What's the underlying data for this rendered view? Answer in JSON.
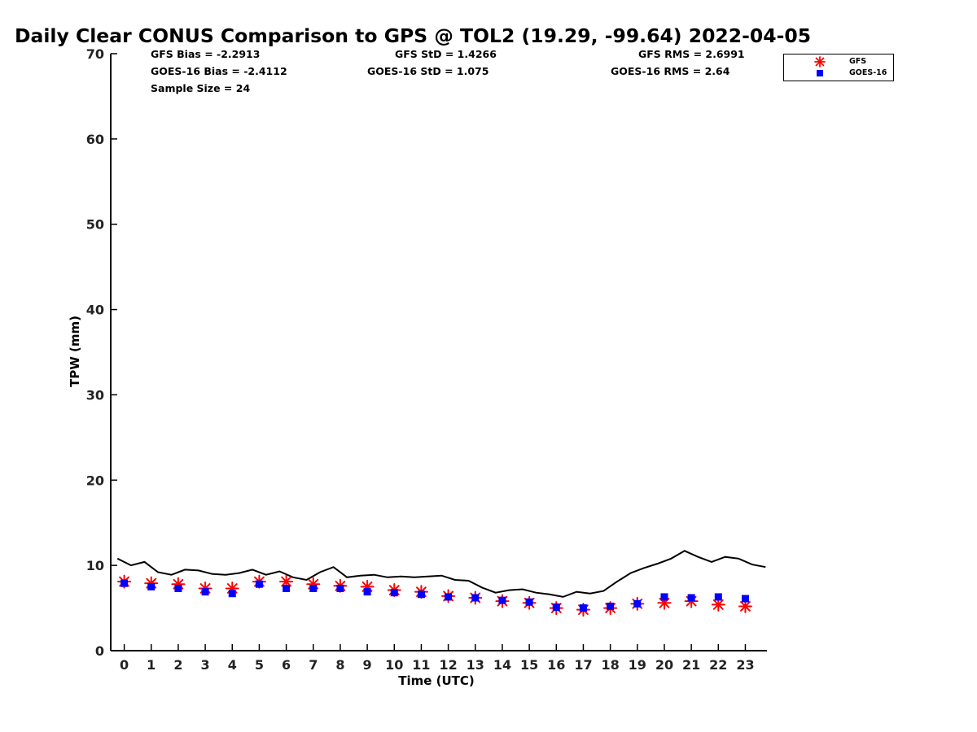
{
  "chart_data": {
    "type": "line",
    "title": "Daily Clear CONUS Comparison to GPS @ TOL2 (19.29, -99.64) 2022-04-05",
    "xlabel": "Time (UTC)",
    "ylabel": "TPW (mm)",
    "xlim": [
      -0.5,
      23.8
    ],
    "ylim": [
      0,
      70
    ],
    "x_ticks": [
      "0",
      "1",
      "2",
      "3",
      "4",
      "5",
      "6",
      "7",
      "8",
      "9",
      "10",
      "11",
      "12",
      "13",
      "14",
      "15",
      "16",
      "17",
      "18",
      "19",
      "20",
      "21",
      "22",
      "23"
    ],
    "y_ticks": [
      "0",
      "10",
      "20",
      "30",
      "40",
      "50",
      "60",
      "70"
    ],
    "grid": false,
    "legend_position": "top-right",
    "stats": {
      "gfs_bias": "GFS Bias = -2.2913",
      "gfs_std": "GFS StD = 1.4266",
      "gfs_rms": "GFS RMS = 2.6991",
      "goes_bias": "GOES-16 Bias = -2.4112",
      "goes_std": "GOES-16 StD = 1.075",
      "goes_rms": "GOES-16 RMS = 2.64",
      "sample_size": "Sample Size = 24"
    },
    "series": [
      {
        "name": "",
        "kind": "line",
        "color": "#000000",
        "x": [
          -0.25,
          0.25,
          0.75,
          1.25,
          1.75,
          2.25,
          2.75,
          3.25,
          3.75,
          4.25,
          4.75,
          5.25,
          5.75,
          6.25,
          6.75,
          7.25,
          7.75,
          8.25,
          8.75,
          9.25,
          9.75,
          10.25,
          10.75,
          11.25,
          11.75,
          12.25,
          12.75,
          13.25,
          13.75,
          14.25,
          14.75,
          15.25,
          15.75,
          16.25,
          16.75,
          17.25,
          17.75,
          18.25,
          18.75,
          19.25,
          19.75,
          20.25,
          20.75,
          21.25,
          21.75,
          22.25,
          22.75,
          23.25,
          23.75
        ],
        "y": [
          10.8,
          10.0,
          10.4,
          9.2,
          8.9,
          9.5,
          9.4,
          9.0,
          8.9,
          9.1,
          9.5,
          8.9,
          9.3,
          8.6,
          8.3,
          9.2,
          9.8,
          8.6,
          8.8,
          8.9,
          8.6,
          8.7,
          8.6,
          8.7,
          8.8,
          8.3,
          8.2,
          7.4,
          6.8,
          7.1,
          7.2,
          6.8,
          6.6,
          6.3,
          6.9,
          6.7,
          7.0,
          8.1,
          9.1,
          9.7,
          10.2,
          10.8,
          11.7,
          11.0,
          10.4,
          11.0,
          10.8,
          10.1,
          9.8
        ]
      },
      {
        "name": "GFS",
        "kind": "asterisk",
        "color": "#ff0000",
        "x": [
          0,
          1,
          2,
          3,
          4,
          5,
          6,
          7,
          8,
          9,
          10,
          11,
          12,
          13,
          14,
          15,
          16,
          17,
          18,
          19,
          20,
          21,
          22,
          23
        ],
        "y": [
          8.1,
          7.9,
          7.8,
          7.3,
          7.3,
          8.1,
          8.1,
          7.8,
          7.6,
          7.5,
          7.1,
          6.9,
          6.4,
          6.2,
          5.8,
          5.6,
          5.0,
          4.8,
          5.0,
          5.5,
          5.6,
          5.8,
          5.4,
          5.2
        ]
      },
      {
        "name": "GOES-16",
        "kind": "square",
        "color": "#0000ff",
        "x": [
          0,
          1,
          2,
          3,
          4,
          5,
          6,
          7,
          8,
          9,
          10,
          11,
          12,
          13,
          14,
          15,
          16,
          17,
          18,
          19,
          20,
          21,
          22,
          23
        ],
        "y": [
          7.9,
          7.5,
          7.3,
          6.9,
          6.7,
          7.8,
          7.3,
          7.3,
          7.3,
          6.9,
          6.8,
          6.6,
          6.3,
          6.2,
          5.9,
          5.7,
          5.1,
          5.0,
          5.2,
          5.5,
          6.3,
          6.2,
          6.3,
          6.1
        ]
      }
    ]
  }
}
